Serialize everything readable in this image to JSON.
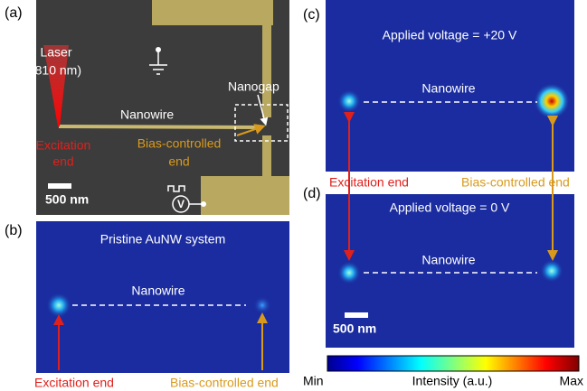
{
  "panel_a": {
    "label": "(a)",
    "laser": "Laser",
    "wavelength": "(810 nm)",
    "nanogap": "Nanogap",
    "nanowire": "Nanowire",
    "excitation": "Excitation",
    "excitation_end": "end",
    "bias": "Bias-controlled",
    "bias_end": "end",
    "scale_bar": "500 nm",
    "voltmeter": "V"
  },
  "panel_b": {
    "label": "(b)",
    "title": "Pristine AuNW system",
    "nanowire": "Nanowire",
    "excitation_end": "Excitation end",
    "bias_end": "Bias-controlled end"
  },
  "panel_c": {
    "label": "(c)",
    "title": "Applied voltage = +20 V",
    "nanowire": "Nanowire",
    "excitation_end": "Excitation end",
    "bias_end": "Bias-controlled end"
  },
  "panel_d": {
    "label": "(d)",
    "title": "Applied voltage = 0 V",
    "nanowire": "Nanowire",
    "scale_bar": "500 nm"
  },
  "colorbar": {
    "min": "Min",
    "label": "Intensity (a.u.)",
    "max": "Max"
  }
}
